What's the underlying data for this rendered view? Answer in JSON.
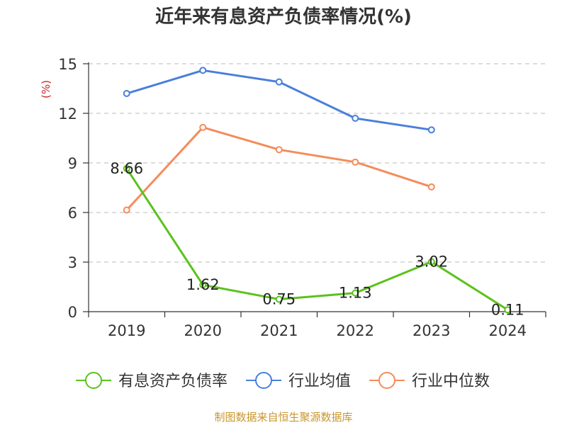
{
  "chart_data": {
    "type": "line",
    "title": "近年来有息资产负债率情况(%)",
    "ylabel": "(%)",
    "xlabel": "",
    "categories": [
      "2019",
      "2020",
      "2021",
      "2022",
      "2023",
      "2024"
    ],
    "ylim": [
      0,
      15
    ],
    "yticks": [
      0,
      3,
      6,
      9,
      12,
      15
    ],
    "grid": true,
    "legend_position": "bottom",
    "series": [
      {
        "name": "有息资产负债率",
        "color": "#5bc21d",
        "values": [
          8.66,
          1.62,
          0.75,
          1.13,
          3.02,
          0.11
        ],
        "show_labels": true
      },
      {
        "name": "行业均值",
        "color": "#4a7fdb",
        "values": [
          13.2,
          14.6,
          13.9,
          11.7,
          11.0,
          null
        ],
        "show_labels": false
      },
      {
        "name": "行业中位数",
        "color": "#f58b5a",
        "values": [
          6.15,
          11.15,
          9.8,
          9.05,
          7.55,
          null
        ],
        "show_labels": false
      }
    ],
    "source_note": "制图数据来自恒生聚源数据库"
  }
}
